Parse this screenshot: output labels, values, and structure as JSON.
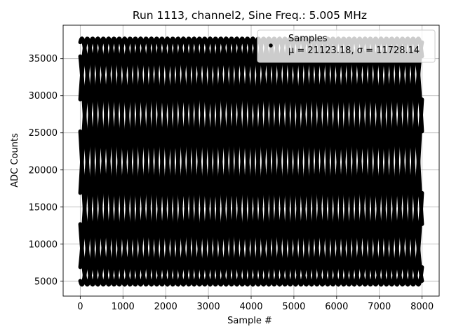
{
  "chart_data": {
    "type": "scatter",
    "title": "Run 1113, channel2, Sine Freq.: 5.005 MHz",
    "xlabel": "Sample #",
    "ylabel": "ADC Counts",
    "xlim": [
      -400,
      8400
    ],
    "ylim": [
      3000,
      39500
    ],
    "xticks": [
      0,
      1000,
      2000,
      3000,
      4000,
      5000,
      6000,
      7000,
      8000
    ],
    "yticks": [
      5000,
      10000,
      15000,
      20000,
      25000,
      30000,
      35000
    ],
    "grid": true,
    "legend_position": "top-right",
    "series": [
      {
        "name": "Samples",
        "legend_line2": "μ = 21123.18, σ = 11728.14",
        "color": "#000000",
        "model": {
          "mean": 21123.18,
          "amplitude": 16587,
          "period": 1000,
          "phase_count": 8,
          "x_start": 0,
          "x_end": 8000,
          "initial_values": [
            37200,
            35300,
            29500,
            25200,
            16900,
            12700,
            6900,
            5050
          ]
        }
      }
    ]
  }
}
